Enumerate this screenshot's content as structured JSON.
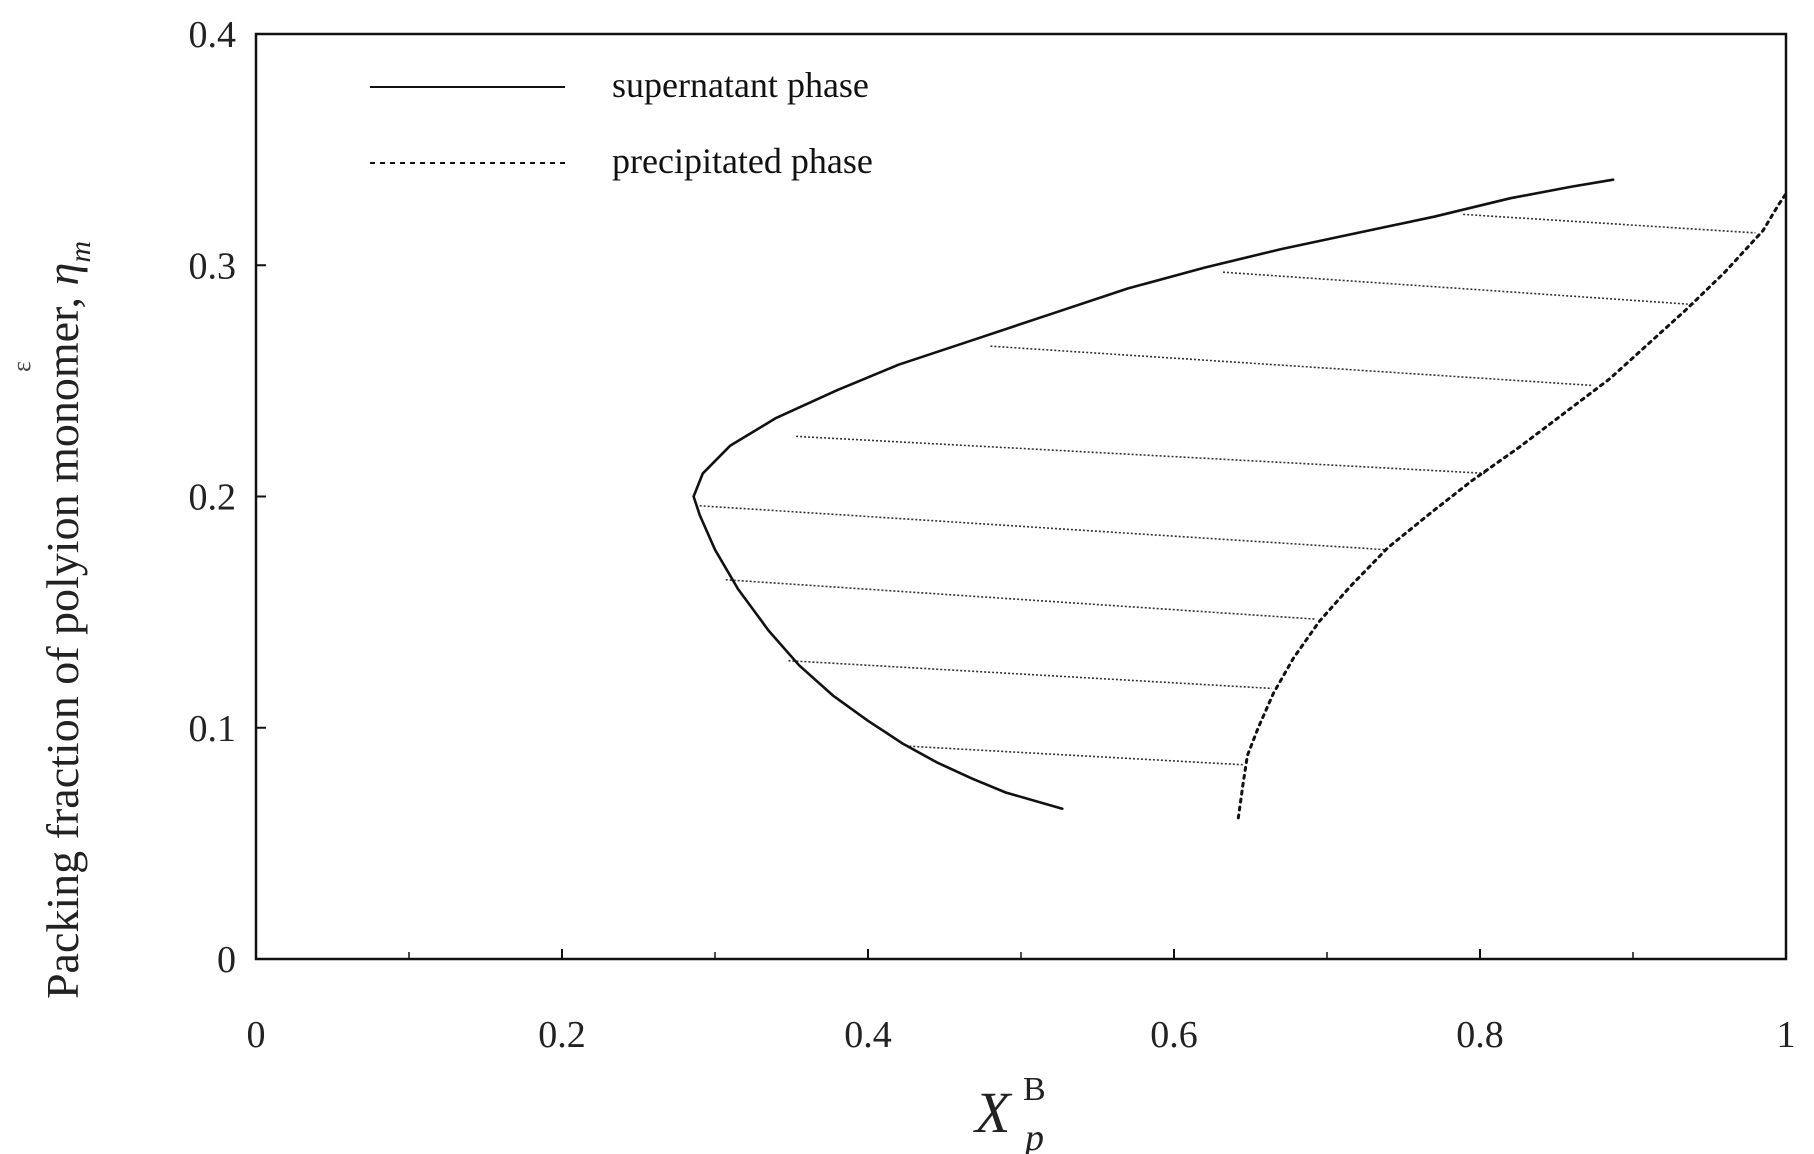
{
  "chart_data": {
    "type": "line",
    "xlabel": {
      "main": "X",
      "subscript": "p",
      "superscript": "B"
    },
    "ylabel": {
      "text": "Packing fraction of polyion monomer, ",
      "symbol": "η",
      "subscript": "m"
    },
    "stray_mark": "ε",
    "xlim": [
      0,
      1
    ],
    "ylim": [
      0,
      0.4
    ],
    "x_ticks": [
      "0",
      "0.2",
      "0.4",
      "0.6",
      "0.8",
      "1"
    ],
    "y_ticks": [
      "0",
      "0.1",
      "0.2",
      "0.3",
      "0.4"
    ],
    "grid": false,
    "legend_position": "top-left",
    "series": [
      {
        "name": "supernatant phase",
        "style": "solid",
        "color": "#111111",
        "points": [
          [
            0.527,
            0.065
          ],
          [
            0.49,
            0.072
          ],
          [
            0.468,
            0.078
          ],
          [
            0.445,
            0.085
          ],
          [
            0.423,
            0.093
          ],
          [
            0.4,
            0.103
          ],
          [
            0.377,
            0.114
          ],
          [
            0.355,
            0.127
          ],
          [
            0.335,
            0.142
          ],
          [
            0.315,
            0.16
          ],
          [
            0.3,
            0.177
          ],
          [
            0.29,
            0.192
          ],
          [
            0.286,
            0.2
          ],
          [
            0.292,
            0.21
          ],
          [
            0.31,
            0.222
          ],
          [
            0.34,
            0.234
          ],
          [
            0.38,
            0.246
          ],
          [
            0.42,
            0.257
          ],
          [
            0.47,
            0.268
          ],
          [
            0.52,
            0.279
          ],
          [
            0.57,
            0.29
          ],
          [
            0.62,
            0.299
          ],
          [
            0.67,
            0.307
          ],
          [
            0.72,
            0.314
          ],
          [
            0.77,
            0.321
          ],
          [
            0.82,
            0.329
          ],
          [
            0.86,
            0.334
          ],
          [
            0.887,
            0.337
          ]
        ]
      },
      {
        "name": "precipitated phase",
        "style": "dotted",
        "color": "#111111",
        "points": [
          [
            0.642,
            0.061
          ],
          [
            0.645,
            0.075
          ],
          [
            0.648,
            0.088
          ],
          [
            0.655,
            0.1
          ],
          [
            0.665,
            0.115
          ],
          [
            0.678,
            0.13
          ],
          [
            0.695,
            0.146
          ],
          [
            0.715,
            0.161
          ],
          [
            0.74,
            0.178
          ],
          [
            0.768,
            0.193
          ],
          [
            0.795,
            0.207
          ],
          [
            0.825,
            0.221
          ],
          [
            0.855,
            0.236
          ],
          [
            0.885,
            0.251
          ],
          [
            0.91,
            0.266
          ],
          [
            0.935,
            0.281
          ],
          [
            0.96,
            0.297
          ],
          [
            0.985,
            0.315
          ],
          [
            0.995,
            0.326
          ],
          [
            1.0,
            0.331
          ]
        ]
      }
    ],
    "tie_lines": [
      {
        "x1": 0.427,
        "y1": 0.092,
        "x2": 0.645,
        "y2": 0.084
      },
      {
        "x1": 0.348,
        "y1": 0.129,
        "x2": 0.664,
        "y2": 0.117
      },
      {
        "x1": 0.307,
        "y1": 0.164,
        "x2": 0.692,
        "y2": 0.147
      },
      {
        "x1": 0.29,
        "y1": 0.196,
        "x2": 0.738,
        "y2": 0.177
      },
      {
        "x1": 0.353,
        "y1": 0.226,
        "x2": 0.804,
        "y2": 0.21
      },
      {
        "x1": 0.48,
        "y1": 0.265,
        "x2": 0.874,
        "y2": 0.248
      },
      {
        "x1": 0.632,
        "y1": 0.297,
        "x2": 0.94,
        "y2": 0.283
      },
      {
        "x1": 0.789,
        "y1": 0.322,
        "x2": 0.98,
        "y2": 0.314
      }
    ]
  }
}
